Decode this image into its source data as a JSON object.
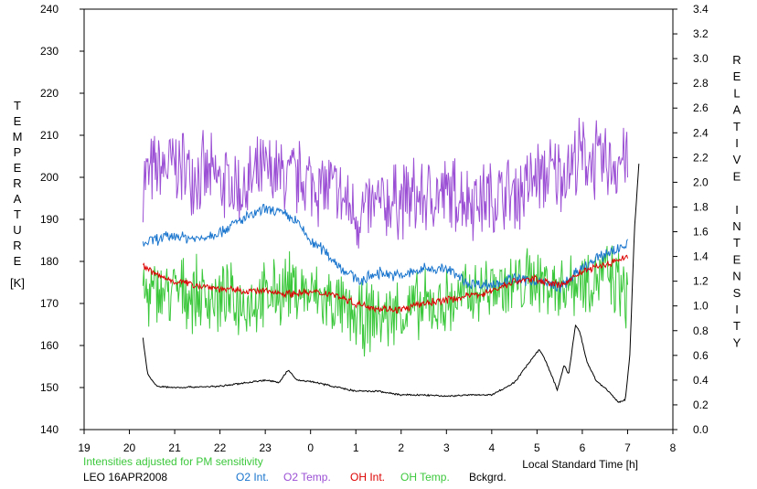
{
  "chart_data": {
    "type": "line",
    "xlabel": "Local Standard Time [h]",
    "x_ticks": [
      "19",
      "20",
      "21",
      "22",
      "23",
      "0",
      "1",
      "2",
      "3",
      "4",
      "5",
      "6",
      "7",
      "8"
    ],
    "xlim": [
      19,
      32
    ],
    "ylabel_left": "TEMPERATURE",
    "ylabel_left_unit": "[K]",
    "ylim_left": [
      140,
      240
    ],
    "y_ticks_left": [
      "140",
      "150",
      "160",
      "170",
      "180",
      "190",
      "200",
      "210",
      "220",
      "230",
      "240"
    ],
    "ylabel_right": "RELATIVE INTENSITY",
    "ylim_right": [
      0,
      3.4
    ],
    "y_ticks_right": [
      "0.0",
      "0.2",
      "0.4",
      "0.6",
      "0.8",
      "1.0",
      "1.2",
      "1.4",
      "1.6",
      "1.8",
      "2.0",
      "2.2",
      "2.4",
      "2.6",
      "2.8",
      "3.0",
      "3.2",
      "3.4"
    ],
    "grid": false,
    "note": "Intensities adjusted for PM sensitivity",
    "station": "LEO 16APR2008",
    "legend_position": "bottom",
    "series": [
      {
        "name": "O2 Int.",
        "axis": "right",
        "color": "#1874cd",
        "noise": 0.04,
        "x": [
          20.3,
          20.5,
          21,
          21.5,
          22,
          22.5,
          23,
          23.3,
          23.7,
          24,
          24.3,
          24.7,
          25.1,
          25.5,
          26,
          26.5,
          27,
          27.5,
          28,
          28.5,
          29,
          29.5,
          30,
          30.5,
          31
        ],
        "y": [
          1.5,
          1.53,
          1.57,
          1.54,
          1.6,
          1.7,
          1.78,
          1.76,
          1.68,
          1.52,
          1.45,
          1.3,
          1.2,
          1.27,
          1.24,
          1.3,
          1.3,
          1.18,
          1.17,
          1.22,
          1.2,
          1.15,
          1.3,
          1.42,
          1.5
        ]
      },
      {
        "name": "O2 Temp.",
        "axis": "left",
        "color": "#9b4fd4",
        "noise": 8,
        "x": [
          20.3,
          21,
          21.5,
          22,
          22.5,
          23,
          23.5,
          24,
          24.5,
          25,
          25.5,
          26,
          26.5,
          27,
          27.5,
          28,
          28.5,
          29,
          29.5,
          30,
          30.5,
          31
        ],
        "y": [
          200,
          203,
          201,
          199,
          197,
          201,
          200,
          199,
          197,
          191,
          193,
          195,
          195,
          196,
          195,
          195,
          196,
          200,
          201,
          205,
          203,
          205
        ]
      },
      {
        "name": "OH Int.",
        "axis": "right",
        "color": "#dd0000",
        "noise": 0.025,
        "x": [
          20.3,
          20.6,
          21,
          21.5,
          22,
          22.5,
          23,
          23.5,
          24,
          24.5,
          25,
          25.5,
          26,
          26.5,
          27,
          27.5,
          28,
          28.5,
          29,
          29.5,
          30,
          30.5,
          31
        ],
        "y": [
          1.33,
          1.25,
          1.2,
          1.17,
          1.14,
          1.12,
          1.12,
          1.1,
          1.11,
          1.1,
          1.02,
          0.98,
          0.97,
          1.02,
          1.05,
          1.08,
          1.12,
          1.2,
          1.22,
          1.16,
          1.28,
          1.33,
          1.4
        ]
      },
      {
        "name": "OH Temp.",
        "axis": "left",
        "color": "#3cc83c",
        "noise": 7,
        "x": [
          20.3,
          21,
          21.5,
          22,
          22.5,
          23,
          23.5,
          24,
          24.5,
          25,
          25.5,
          26,
          26.5,
          27,
          27.5,
          28,
          28.5,
          29,
          29.5,
          30,
          30.5,
          31
        ],
        "y": [
          172,
          173,
          172,
          171,
          170,
          171,
          174,
          172,
          170,
          166,
          167,
          168,
          169,
          170,
          172,
          174,
          174,
          176,
          174,
          176,
          177,
          172
        ]
      },
      {
        "name": "Bckgrd.",
        "axis": "right",
        "color": "#000000",
        "noise": 0.006,
        "x": [
          20.3,
          20.4,
          20.6,
          21,
          22,
          23,
          23.3,
          23.5,
          23.7,
          24,
          24.5,
          25,
          25.5,
          26,
          26.5,
          27,
          27.5,
          28,
          28.5,
          28.9,
          29.05,
          29.2,
          29.45,
          29.6,
          29.7,
          29.85,
          29.95,
          30.1,
          30.3,
          30.6,
          30.8,
          30.95,
          31.05,
          31.15,
          31.25
        ],
        "y": [
          0.74,
          0.45,
          0.35,
          0.34,
          0.35,
          0.4,
          0.38,
          0.48,
          0.4,
          0.39,
          0.35,
          0.31,
          0.31,
          0.28,
          0.28,
          0.27,
          0.28,
          0.28,
          0.38,
          0.58,
          0.65,
          0.55,
          0.32,
          0.52,
          0.45,
          0.85,
          0.78,
          0.55,
          0.4,
          0.3,
          0.22,
          0.24,
          0.6,
          1.6,
          2.15
        ]
      }
    ]
  }
}
